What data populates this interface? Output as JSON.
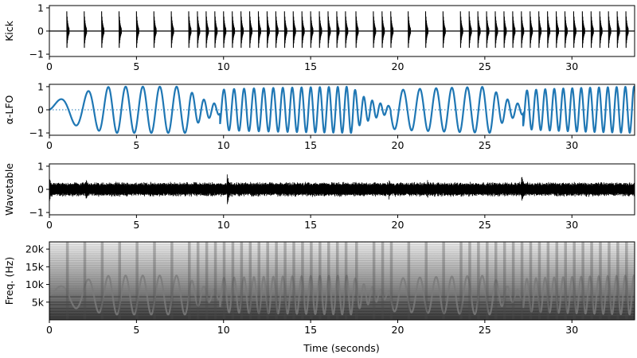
{
  "chart_data": [
    {
      "type": "line",
      "id": "kick",
      "ylabel": "Kick",
      "xlim": [
        0,
        33.6
      ],
      "ylim": [
        -1.1,
        1.1
      ],
      "xticks": [
        "0",
        "5",
        "10",
        "15",
        "20",
        "25",
        "30"
      ],
      "xtick_values": [
        0,
        5,
        10,
        15,
        20,
        25,
        30
      ],
      "yticks": [
        "−1",
        "0",
        "1"
      ],
      "ytick_values": [
        -1,
        0,
        1
      ],
      "line_color": "#000000",
      "baseline_color": "#000000",
      "hit_amplitude": 0.85,
      "onsets": [
        1.0,
        2.0,
        3.0,
        4.0,
        5.0,
        6.0,
        7.0,
        8.0,
        8.5,
        9.0,
        9.5,
        10.0,
        10.5,
        11.0,
        11.5,
        12.0,
        12.5,
        13.0,
        13.5,
        14.0,
        14.5,
        15.0,
        15.5,
        16.0,
        16.5,
        17.0,
        17.6,
        18.6,
        19.1,
        19.6,
        20.6,
        21.6,
        22.6,
        23.6,
        24.1,
        24.6,
        25.1,
        25.6,
        26.1,
        26.6,
        27.1,
        27.6,
        28.1,
        28.6,
        29.1,
        29.6,
        30.1,
        30.6,
        31.1,
        31.6,
        32.1,
        32.6,
        33.1
      ]
    },
    {
      "type": "line",
      "id": "lfo",
      "ylabel": "α-LFO",
      "xlim": [
        0,
        33.6
      ],
      "ylim": [
        -1.1,
        1.1
      ],
      "xticks": [
        "0",
        "5",
        "10",
        "15",
        "20",
        "25",
        "30"
      ],
      "xtick_values": [
        0,
        5,
        10,
        15,
        20,
        25,
        30
      ],
      "yticks": [
        "−1",
        "0",
        "1"
      ],
      "ytick_values": [
        -1,
        0,
        1
      ],
      "line_color": "#1f77b4",
      "baseline_style": "dotted",
      "baseline_color": "#1f77b4",
      "segments": [
        {
          "t0": 0.0,
          "t1": 3.5,
          "freq0": 0.35,
          "freq1": 1.0,
          "amp0": 0.05,
          "amp1": 1.0
        },
        {
          "t0": 3.5,
          "t1": 8.0,
          "freq0": 1.0,
          "freq1": 1.05,
          "amp0": 1.0,
          "amp1": 1.0
        },
        {
          "t0": 8.0,
          "t1": 9.8,
          "freq0": 1.3,
          "freq1": 1.9,
          "amp0": 1.0,
          "amp1": 0.2
        },
        {
          "t0": 9.8,
          "t1": 17.5,
          "freq0": 1.7,
          "freq1": 2.0,
          "amp0": 0.85,
          "amp1": 1.0
        },
        {
          "t0": 17.5,
          "t1": 19.6,
          "freq0": 2.0,
          "freq1": 2.2,
          "amp0": 1.0,
          "amp1": 0.15
        },
        {
          "t0": 19.6,
          "t1": 25.5,
          "freq0": 1.0,
          "freq1": 1.2,
          "amp0": 0.8,
          "amp1": 1.0
        },
        {
          "t0": 25.5,
          "t1": 27.2,
          "freq0": 1.4,
          "freq1": 1.9,
          "amp0": 1.0,
          "amp1": 0.2
        },
        {
          "t0": 27.2,
          "t1": 33.6,
          "freq0": 1.9,
          "freq1": 2.0,
          "amp0": 0.8,
          "amp1": 1.0
        }
      ]
    },
    {
      "type": "line",
      "id": "wavetable",
      "ylabel": "Wavetable",
      "xlim": [
        0,
        33.6
      ],
      "ylim": [
        -1.1,
        1.1
      ],
      "xticks": [
        "0",
        "5",
        "10",
        "15",
        "20",
        "25",
        "30"
      ],
      "xtick_values": [
        0,
        5,
        10,
        15,
        20,
        25,
        30
      ],
      "yticks": [
        "−1",
        "0",
        "1"
      ],
      "ytick_values": [
        -1,
        0,
        1
      ],
      "line_color": "#000000",
      "envelope_amplitude": 0.3,
      "peaks": [
        {
          "t": 0.0,
          "amp": 0.55
        },
        {
          "t": 2.1,
          "amp": 0.55
        },
        {
          "t": 10.2,
          "amp": 0.75
        },
        {
          "t": 19.5,
          "amp": 0.45
        },
        {
          "t": 21.7,
          "amp": 0.45
        },
        {
          "t": 27.1,
          "amp": 0.75
        }
      ]
    },
    {
      "type": "heatmap",
      "id": "spectrogram",
      "ylabel": "Freq. (Hz)",
      "xlabel": "Time (seconds)",
      "xlim": [
        0,
        33.6
      ],
      "ylim": [
        0,
        22050
      ],
      "xticks": [
        "0",
        "5",
        "10",
        "15",
        "20",
        "25",
        "30"
      ],
      "xtick_values": [
        0,
        5,
        10,
        15,
        20,
        25,
        30
      ],
      "yticks": [
        "5k",
        "10k",
        "15k",
        "20k"
      ],
      "ytick_values": [
        5000,
        10000,
        15000,
        20000
      ],
      "colormap": "gray_r",
      "sweep_period": 1.0,
      "harmonic_lines_hz": [
        800,
        1600,
        2400,
        3200,
        4300,
        5000,
        6500
      ]
    }
  ]
}
